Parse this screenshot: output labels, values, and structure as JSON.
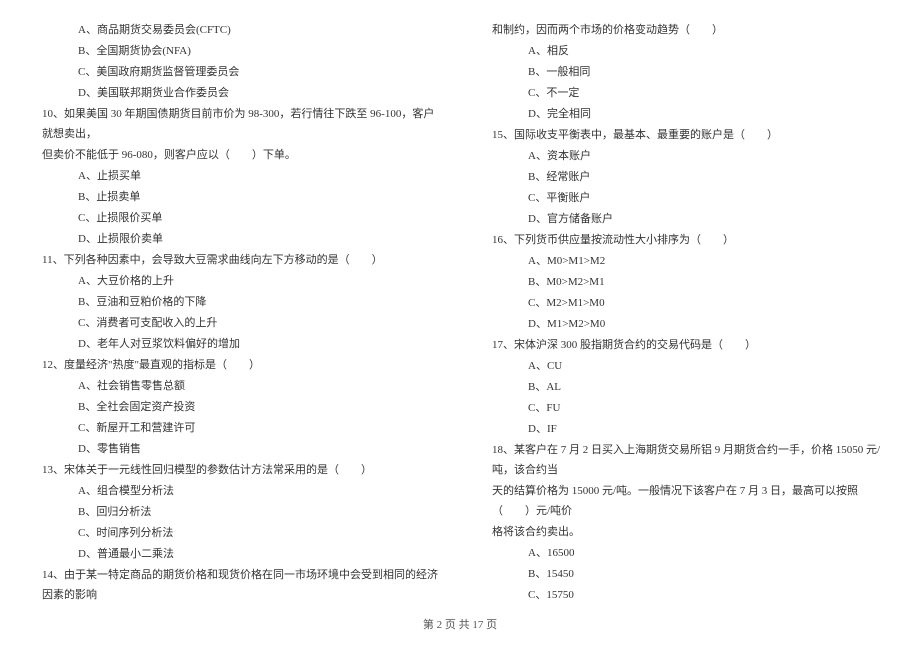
{
  "left": {
    "q9_options": [
      "A、商品期货交易委员会(CFTC)",
      "B、全国期货协会(NFA)",
      "C、美国政府期货监督管理委员会",
      "D、美国联邦期货业合作委员会"
    ],
    "q10": {
      "line1": "10、如果美国 30 年期国债期货目前市价为 98-300，若行情往下跌至 96-100，客户就想卖出，",
      "line2": "但卖价不能低于 96-080，则客户应以（　　）下单。",
      "options": [
        "A、止损买单",
        "B、止损卖单",
        "C、止损限价买单",
        "D、止损限价卖单"
      ]
    },
    "q11": {
      "text": "11、下列各种因素中，会导致大豆需求曲线向左下方移动的是（　　）",
      "options": [
        "A、大豆价格的上升",
        "B、豆油和豆粕价格的下降",
        "C、消费者可支配收入的上升",
        "D、老年人对豆浆饮料偏好的增加"
      ]
    },
    "q12": {
      "text": "12、度量经济\"热度\"最直观的指标是（　　）",
      "options": [
        "A、社会销售零售总额",
        "B、全社会固定资产投资",
        "C、新屋开工和营建许可",
        "D、零售销售"
      ]
    },
    "q13": {
      "text": "13、宋体关于一元线性回归模型的参数估计方法常采用的是（　　）",
      "options": [
        "A、组合模型分析法",
        "B、回归分析法",
        "C、时间序列分析法",
        "D、普通最小二乘法"
      ]
    },
    "q14": {
      "text": "14、由于某一特定商品的期货价格和现货价格在同一市场环境中会受到相同的经济因素的影响"
    }
  },
  "right": {
    "q14_cont": {
      "text": "和制约，因而两个市场的价格变动趋势（　　）",
      "options": [
        "A、相反",
        "B、一般相同",
        "C、不一定",
        "D、完全相同"
      ]
    },
    "q15": {
      "text": "15、国际收支平衡表中，最基本、最重要的账户是（　　）",
      "options": [
        "A、资本账户",
        "B、经常账户",
        "C、平衡账户",
        "D、官方储备账户"
      ]
    },
    "q16": {
      "text": "16、下列货币供应量按流动性大小排序为（　　）",
      "options": [
        "A、M0>M1>M2",
        "B、M0>M2>M1",
        "C、M2>M1>M0",
        "D、M1>M2>M0"
      ]
    },
    "q17": {
      "text": "17、宋体沪深 300 股指期货合约的交易代码是（　　）",
      "options": [
        "A、CU",
        "B、AL",
        "C、FU",
        "D、IF"
      ]
    },
    "q18": {
      "line1": "18、某客户在 7 月 2 日买入上海期货交易所铝 9 月期货合约一手，价格 15050 元/吨，该合约当",
      "line2": "天的结算价格为 15000 元/吨。一般情况下该客户在 7 月 3 日，最高可以按照（　　）元/吨价",
      "line3": "格将该合约卖出。",
      "options": [
        "A、16500",
        "B、15450",
        "C、15750"
      ]
    }
  },
  "footer": "第 2 页 共 17 页"
}
